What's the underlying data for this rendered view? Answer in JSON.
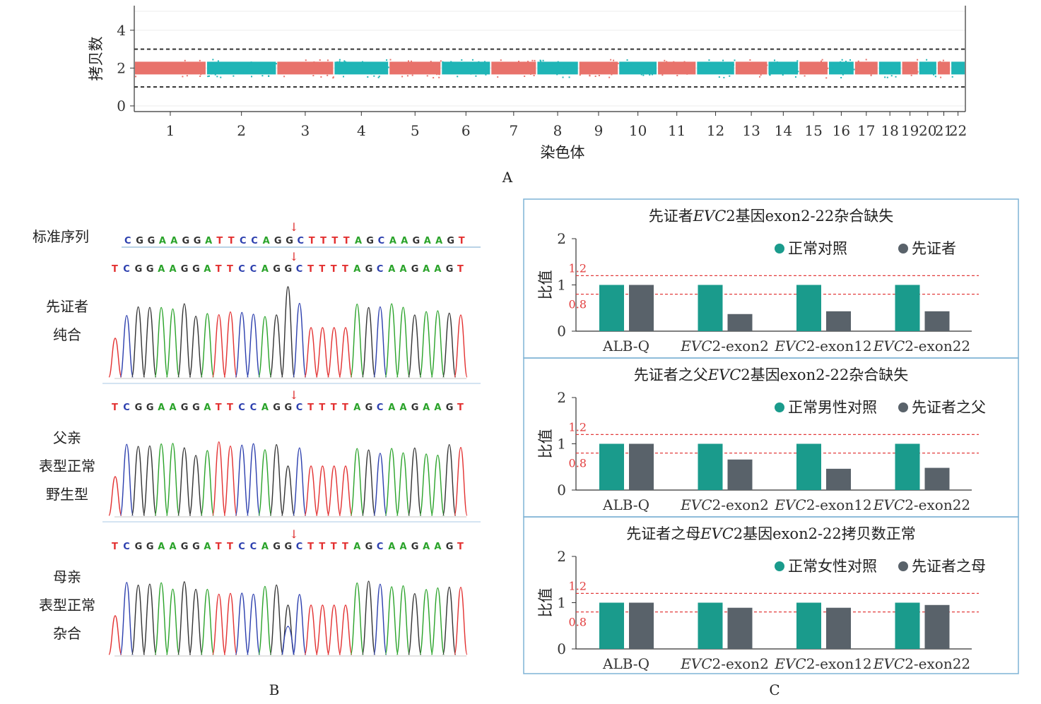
{
  "panel_labels": {
    "a": "A",
    "b": "B",
    "c": "C"
  },
  "colors": {
    "seg_red": "#e8726b",
    "seg_teal": "#1fb5b6",
    "bar_teal": "#1a9b8c",
    "bar_gray": "#59626a",
    "ref_red": "#e23d3d",
    "frame_blue": "#7fb3d5",
    "A": "#2aa32a",
    "C": "#2c3fae",
    "G": "#333333",
    "T": "#e33131"
  },
  "chart_data": [
    {
      "type": "scatter",
      "panel": "A",
      "ylabel": "拷贝数",
      "xlabel": "染色体",
      "ylim": [
        -0.3,
        5.3
      ],
      "yticks": [
        0,
        2,
        4
      ],
      "reference_lines": [
        1,
        3
      ],
      "x_categories": [
        "1",
        "2",
        "3",
        "4",
        "5",
        "6",
        "7",
        "8",
        "9",
        "10",
        "11",
        "12",
        "13",
        "14",
        "15",
        "16",
        "17",
        "18",
        "19",
        "20",
        "21",
        "22"
      ],
      "chromosome_copy_number": [
        2,
        2,
        2,
        2,
        2,
        2,
        2,
        2,
        2,
        2,
        2,
        2,
        2,
        2,
        2,
        2,
        2,
        2,
        2,
        2,
        2,
        2
      ],
      "chromosome_relative_length": [
        249,
        243,
        198,
        190,
        181,
        171,
        159,
        145,
        138,
        134,
        135,
        133,
        114,
        107,
        102,
        90,
        83,
        80,
        59,
        64,
        47,
        51
      ],
      "grid": true
    },
    {
      "type": "bar",
      "panel": "C",
      "title_parts": [
        "先证者",
        "EVC",
        "2基因exon2-22杂合缺失"
      ],
      "categories": [
        {
          "pre": "ALB-Q",
          "it": "",
          "post": ""
        },
        {
          "pre": "",
          "it": "EVC",
          "post": "2-exon2"
        },
        {
          "pre": "",
          "it": "EVC",
          "post": "2-exon12"
        },
        {
          "pre": "",
          "it": "EVC",
          "post": "2-exon22"
        }
      ],
      "series": [
        {
          "name": "正常对照",
          "values": [
            1.0,
            1.0,
            1.0,
            1.0
          ]
        },
        {
          "name": "先证者",
          "values": [
            1.0,
            0.37,
            0.43,
            0.43
          ]
        }
      ],
      "ylabel": "比值",
      "ylim": [
        0,
        2
      ],
      "yticks": [
        "0",
        "1",
        "2"
      ],
      "reference_lines": [
        {
          "value": 1.2,
          "label": "1.2"
        },
        {
          "value": 0.8,
          "label": "0.8"
        }
      ],
      "legend": "top-right"
    },
    {
      "type": "bar",
      "panel": "C",
      "title_parts": [
        "先证者之父",
        "EVC",
        "2基因exon2-22杂合缺失"
      ],
      "categories": [
        {
          "pre": "ALB-Q",
          "it": "",
          "post": ""
        },
        {
          "pre": "",
          "it": "EVC",
          "post": "2-exon2"
        },
        {
          "pre": "",
          "it": "EVC",
          "post": "2-exon12"
        },
        {
          "pre": "",
          "it": "EVC",
          "post": "2-exon22"
        }
      ],
      "series": [
        {
          "name": "正常男性对照",
          "values": [
            1.0,
            1.0,
            1.0,
            1.0
          ]
        },
        {
          "name": "先证者之父",
          "values": [
            1.0,
            0.66,
            0.46,
            0.48
          ]
        }
      ],
      "ylabel": "比值",
      "ylim": [
        0,
        2
      ],
      "yticks": [
        "0",
        "1",
        "2"
      ],
      "reference_lines": [
        {
          "value": 1.2,
          "label": "1.2"
        },
        {
          "value": 0.8,
          "label": "0.8"
        }
      ],
      "legend": "top-right"
    },
    {
      "type": "bar",
      "panel": "C",
      "title_parts": [
        "先证者之母",
        "EVC",
        "2基因exon2-22拷贝数正常"
      ],
      "categories": [
        {
          "pre": "ALB-Q",
          "it": "",
          "post": ""
        },
        {
          "pre": "",
          "it": "EVC",
          "post": "2-exon2"
        },
        {
          "pre": "",
          "it": "EVC",
          "post": "2-exon12"
        },
        {
          "pre": "",
          "it": "EVC",
          "post": "2-exon22"
        }
      ],
      "series": [
        {
          "name": "正常女性对照",
          "values": [
            1.0,
            1.0,
            1.0,
            1.0
          ]
        },
        {
          "name": "先证者之母",
          "values": [
            1.0,
            0.89,
            0.89,
            0.95
          ]
        }
      ],
      "ylabel": "比值",
      "ylim": [
        0,
        2
      ],
      "yticks": [
        "0",
        "1",
        "2"
      ],
      "reference_lines": [
        {
          "value": 1.2,
          "label": "1.2"
        },
        {
          "value": 0.8,
          "label": "0.8"
        }
      ],
      "legend": "top-right"
    }
  ],
  "sanger": {
    "reference_label": "标准序列",
    "reference_sequence": "CGGAAGGATTCCAGGCTTTTAGCAAGAAGT",
    "tracks": [
      {
        "label_lines": [
          "先证者",
          "纯合"
        ],
        "sequence": "TCGGAAGGATTCCAGGCTTTTAGCAAGAAGT"
      },
      {
        "label_lines": [
          "父亲",
          "表型正常",
          "野生型"
        ],
        "sequence": "TCGGAAGGATTCCAGGCTTTTAGCAAGAAGT"
      },
      {
        "label_lines": [
          "母亲",
          "表型正常",
          "杂合"
        ],
        "sequence": "TCGGAAGGATTCCAGGCTTTTAGCAAGAAGT"
      }
    ],
    "marker": "↓"
  }
}
